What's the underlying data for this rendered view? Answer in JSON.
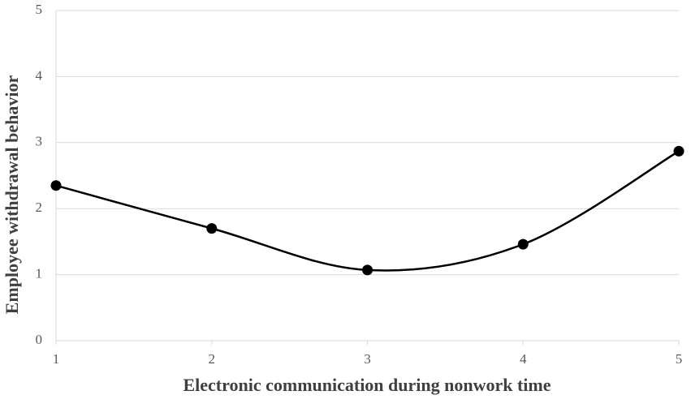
{
  "chart_data": {
    "type": "line",
    "x": [
      1,
      2,
      3,
      4,
      5
    ],
    "values": [
      2.35,
      1.7,
      1.07,
      1.46,
      2.87
    ],
    "color": "#000000",
    "smooth": true,
    "markers": true,
    "xlabel": "Electronic communication during nonwork time",
    "ylabel": "Employee withdrawal behavior",
    "xlim": [
      1,
      5
    ],
    "xticks": [
      1,
      2,
      3,
      4,
      5
    ],
    "ylim": [
      0,
      5
    ],
    "yticks": [
      0,
      1,
      2,
      3,
      4,
      5
    ],
    "grid": true
  }
}
